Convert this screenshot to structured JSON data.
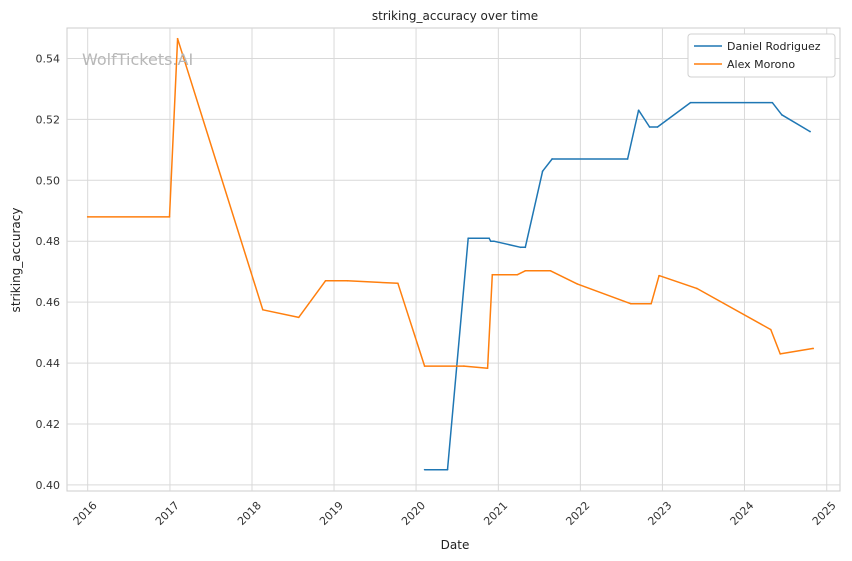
{
  "chart_data": {
    "type": "line",
    "title": "striking_accuracy over time",
    "xlabel": "Date",
    "ylabel": "striking_accuracy",
    "xlim": [
      "2015-10-01",
      "2025-03-01"
    ],
    "ylim": [
      0.398,
      0.55
    ],
    "x_ticks": [
      "2016",
      "2017",
      "2018",
      "2019",
      "2020",
      "2021",
      "2022",
      "2023",
      "2024",
      "2025"
    ],
    "y_ticks": [
      "0.40",
      "0.42",
      "0.44",
      "0.46",
      "0.48",
      "0.50",
      "0.52",
      "0.54"
    ],
    "grid": true,
    "legend_position": "top-right",
    "watermark": "WolfTickets.AI",
    "series": [
      {
        "name": "Daniel Rodriguez",
        "color": "#1f77b4",
        "points": [
          [
            "2020-02-08",
            0.405
          ],
          [
            "2020-05-20",
            0.405
          ],
          [
            "2020-08-20",
            0.481
          ],
          [
            "2020-11-21",
            0.481
          ],
          [
            "2020-11-28",
            0.48
          ],
          [
            "2020-12-12",
            0.48
          ],
          [
            "2021-04-10",
            0.478
          ],
          [
            "2021-05-01",
            0.478
          ],
          [
            "2021-07-17",
            0.503
          ],
          [
            "2021-08-28",
            0.507
          ],
          [
            "2022-07-30",
            0.507
          ],
          [
            "2022-09-17",
            0.523
          ],
          [
            "2022-11-05",
            0.5175
          ],
          [
            "2022-12-10",
            0.5175
          ],
          [
            "2023-05-06",
            0.5255
          ],
          [
            "2024-05-04",
            0.5255
          ],
          [
            "2024-06-15",
            0.5215
          ],
          [
            "2024-10-19",
            0.516
          ]
        ]
      },
      {
        "name": "Alex Morono",
        "color": "#ff7f0e",
        "points": [
          [
            "2016-01-01",
            0.488
          ],
          [
            "2016-12-30",
            0.488
          ],
          [
            "2017-02-04",
            0.5465
          ],
          [
            "2018-02-18",
            0.4575
          ],
          [
            "2018-07-28",
            0.455
          ],
          [
            "2018-11-24",
            0.467
          ],
          [
            "2019-03-01",
            0.467
          ],
          [
            "2019-10-12",
            0.4662
          ],
          [
            "2020-02-08",
            0.439
          ],
          [
            "2020-08-01",
            0.439
          ],
          [
            "2020-11-14",
            0.4383
          ],
          [
            "2020-12-05",
            0.469
          ],
          [
            "2021-03-27",
            0.469
          ],
          [
            "2021-05-01",
            0.4703
          ],
          [
            "2021-08-21",
            0.4703
          ],
          [
            "2021-12-18",
            0.466
          ],
          [
            "2022-08-13",
            0.4595
          ],
          [
            "2022-11-12",
            0.4595
          ],
          [
            "2022-12-17",
            0.4687
          ],
          [
            "2023-06-03",
            0.4645
          ],
          [
            "2024-04-27",
            0.451
          ],
          [
            "2024-06-08",
            0.443
          ],
          [
            "2024-11-02",
            0.4448
          ]
        ]
      }
    ]
  }
}
